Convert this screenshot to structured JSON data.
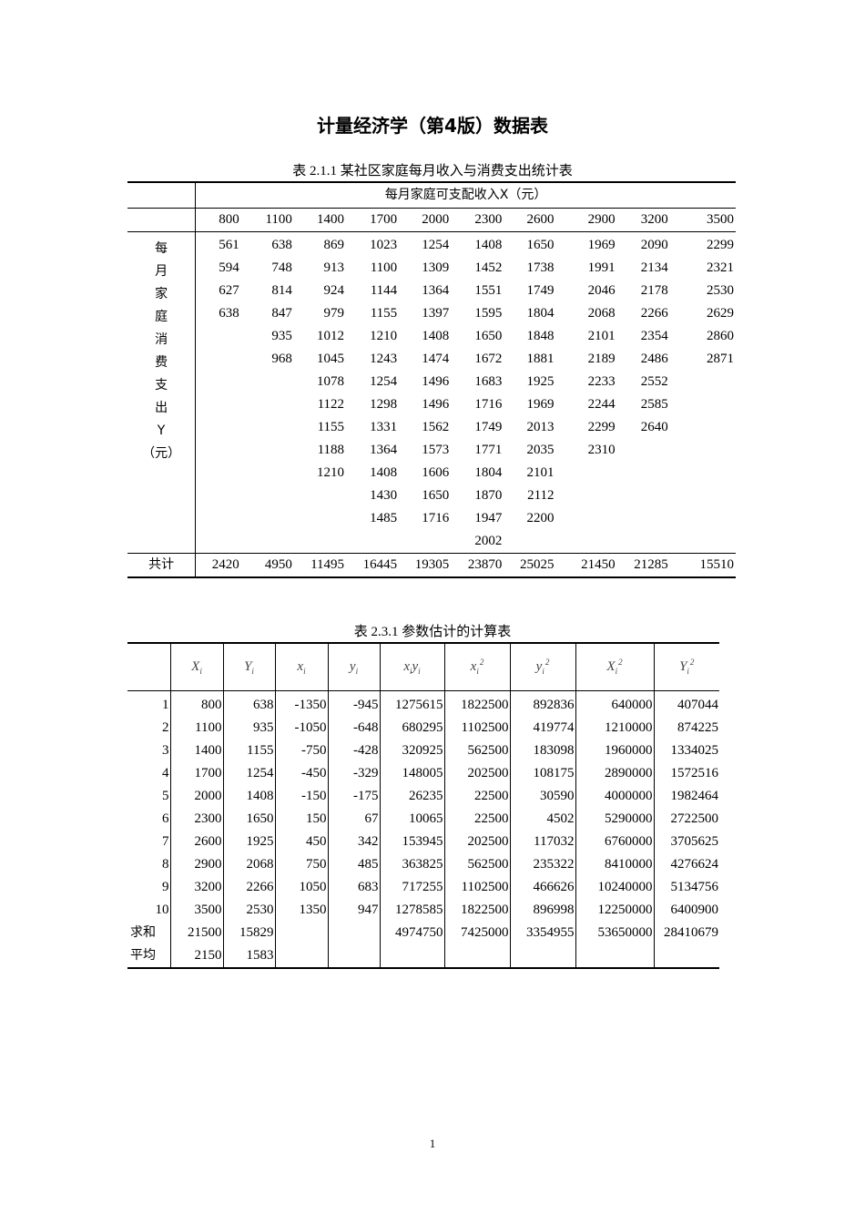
{
  "title": "计量经济学（第4版）数据表",
  "table1": {
    "caption": "表 2.1.1  某社区家庭每月收入与消费支出统计表",
    "header": "每月家庭可支配收入X（元）",
    "row_label": [
      "每",
      "月",
      "家",
      "庭",
      "消",
      "费",
      "支",
      "出",
      "Y",
      "（元）"
    ],
    "income": [
      "800",
      "1100",
      "1400",
      "1700",
      "2000",
      "2300",
      "2600",
      "2900",
      "3200",
      "3500"
    ],
    "columns": [
      [
        "561",
        "594",
        "627",
        "638"
      ],
      [
        "638",
        "748",
        "814",
        "847",
        "935",
        "968"
      ],
      [
        "869",
        "913",
        "924",
        "979",
        "1012",
        "1045",
        "1078",
        "1122",
        "1155",
        "1188",
        "1210"
      ],
      [
        "1023",
        "1100",
        "1144",
        "1155",
        "1210",
        "1243",
        "1254",
        "1298",
        "1331",
        "1364",
        "1408",
        "1430",
        "1485"
      ],
      [
        "1254",
        "1309",
        "1364",
        "1397",
        "1408",
        "1474",
        "1496",
        "1496",
        "1562",
        "1573",
        "1606",
        "1650",
        "1716"
      ],
      [
        "1408",
        "1452",
        "1551",
        "1595",
        "1650",
        "1672",
        "1683",
        "1716",
        "1749",
        "1771",
        "1804",
        "1870",
        "1947",
        "2002"
      ],
      [
        "1650",
        "1738",
        "1749",
        "1804",
        "1848",
        "1881",
        "1925",
        "1969",
        "2013",
        "2035",
        "2101",
        "2112",
        "2200"
      ],
      [
        "1969",
        "1991",
        "2046",
        "2068",
        "2101",
        "2189",
        "2233",
        "2244",
        "2299",
        "2310"
      ],
      [
        "2090",
        "2134",
        "2178",
        "2266",
        "2354",
        "2486",
        "2552",
        "2585",
        "2640"
      ],
      [
        "2299",
        "2321",
        "2530",
        "2629",
        "2860",
        "2871"
      ]
    ],
    "total_label": "共计",
    "totals": [
      "2420",
      "4950",
      "11495",
      "16445",
      "19305",
      "23870",
      "25025",
      "21450",
      "21285",
      "15510"
    ]
  },
  "table2": {
    "caption": "表 2.3.1  参数估计的计算表",
    "headers": [
      {
        "b": "X",
        "s": "i",
        "p": ""
      },
      {
        "b": "Y",
        "s": "i",
        "p": ""
      },
      {
        "b": "x",
        "s": "i",
        "p": ""
      },
      {
        "b": "y",
        "s": "i",
        "p": ""
      },
      {
        "b": "x",
        "s": "i",
        "p": "",
        "b2": "y",
        "s2": "i"
      },
      {
        "b": "x",
        "s": "i",
        "p": "2"
      },
      {
        "b": "y",
        "s": "i",
        "p": "2"
      },
      {
        "b": "X",
        "s": "i",
        "p": "2"
      },
      {
        "b": "Y",
        "s": "i",
        "p": "2"
      }
    ],
    "rows": [
      [
        "1",
        "800",
        "638",
        "-1350",
        "-945",
        "1275615",
        "1822500",
        "892836",
        "640000",
        "407044"
      ],
      [
        "2",
        "1100",
        "935",
        "-1050",
        "-648",
        "680295",
        "1102500",
        "419774",
        "1210000",
        "874225"
      ],
      [
        "3",
        "1400",
        "1155",
        "-750",
        "-428",
        "320925",
        "562500",
        "183098",
        "1960000",
        "1334025"
      ],
      [
        "4",
        "1700",
        "1254",
        "-450",
        "-329",
        "148005",
        "202500",
        "108175",
        "2890000",
        "1572516"
      ],
      [
        "5",
        "2000",
        "1408",
        "-150",
        "-175",
        "26235",
        "22500",
        "30590",
        "4000000",
        "1982464"
      ],
      [
        "6",
        "2300",
        "1650",
        "150",
        "67",
        "10065",
        "22500",
        "4502",
        "5290000",
        "2722500"
      ],
      [
        "7",
        "2600",
        "1925",
        "450",
        "342",
        "153945",
        "202500",
        "117032",
        "6760000",
        "3705625"
      ],
      [
        "8",
        "2900",
        "2068",
        "750",
        "485",
        "363825",
        "562500",
        "235322",
        "8410000",
        "4276624"
      ],
      [
        "9",
        "3200",
        "2266",
        "1050",
        "683",
        "717255",
        "1102500",
        "466626",
        "10240000",
        "5134756"
      ],
      [
        "10",
        "3500",
        "2530",
        "1350",
        "947",
        "1278585",
        "1822500",
        "896998",
        "12250000",
        "6400900"
      ],
      [
        "求和",
        "21500",
        "15829",
        "",
        "",
        "4974750",
        "7425000",
        "3354955",
        "53650000",
        "28410679"
      ],
      [
        "平均",
        "2150",
        "1583",
        "",
        "",
        "",
        "",
        "",
        "",
        ""
      ]
    ]
  },
  "page_number": "1"
}
